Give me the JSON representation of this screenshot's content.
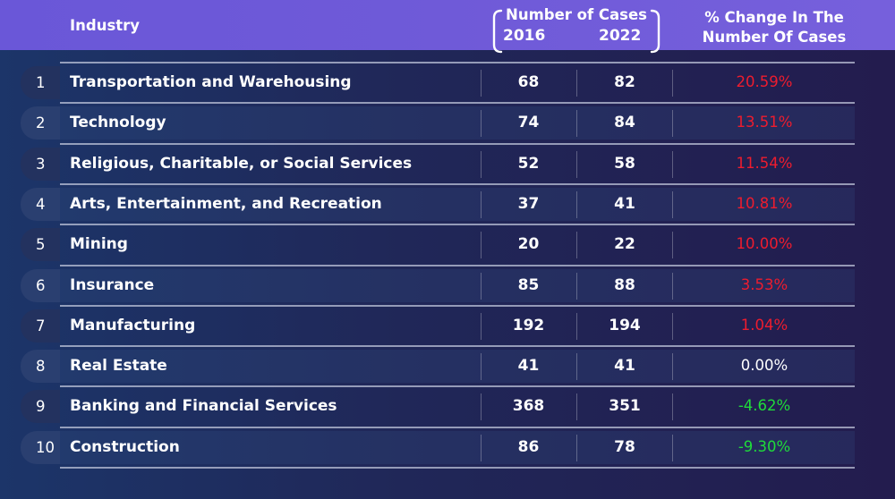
{
  "header": {
    "industry": "Industry",
    "cases": "Number of Cases",
    "year_a": "2016",
    "year_b": "2022",
    "change_line1": "% Change In The",
    "change_line2": "Number Of Cases"
  },
  "colors": {
    "increase": "#ee1c2e",
    "decrease": "#1fdc3a",
    "header": "#6f5ad8"
  },
  "chart_data": {
    "type": "table",
    "columns": [
      "Industry",
      "2016",
      "2022",
      "% Change In The Number Of Cases"
    ],
    "rows": [
      {
        "rank": "1",
        "industry": "Transportation and Warehousing",
        "y2016": "68",
        "y2022": "82",
        "change": "20.59%",
        "dir": "pos"
      },
      {
        "rank": "2",
        "industry": "Technology",
        "y2016": "74",
        "y2022": "84",
        "change": "13.51%",
        "dir": "pos"
      },
      {
        "rank": "3",
        "industry": "Religious, Charitable, or Social Services",
        "y2016": "52",
        "y2022": "58",
        "change": "11.54%",
        "dir": "pos"
      },
      {
        "rank": "4",
        "industry": "Arts, Entertainment, and Recreation",
        "y2016": "37",
        "y2022": "41",
        "change": "10.81%",
        "dir": "pos"
      },
      {
        "rank": "5",
        "industry": "Mining",
        "y2016": "20",
        "y2022": "22",
        "change": "10.00%",
        "dir": "pos"
      },
      {
        "rank": "6",
        "industry": "Insurance",
        "y2016": "85",
        "y2022": "88",
        "change": "3.53%",
        "dir": "pos"
      },
      {
        "rank": "7",
        "industry": "Manufacturing",
        "y2016": "192",
        "y2022": "194",
        "change": "1.04%",
        "dir": "pos"
      },
      {
        "rank": "8",
        "industry": "Real Estate",
        "y2016": "41",
        "y2022": "41",
        "change": "0.00%",
        "dir": "zero"
      },
      {
        "rank": "9",
        "industry": "Banking and Financial Services",
        "y2016": "368",
        "y2022": "351",
        "change": "-4.62%",
        "dir": "neg"
      },
      {
        "rank": "10",
        "industry": "Construction",
        "y2016": "86",
        "y2022": "78",
        "change": "-9.30%",
        "dir": "neg"
      }
    ]
  }
}
